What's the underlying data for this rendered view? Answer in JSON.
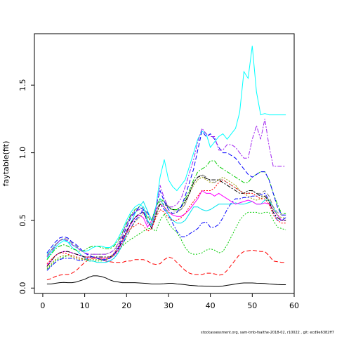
{
  "footer": "stockassessment.org, sam-tmb-fsaithe-2018-02, r10022 , git: ecd9e6382ff7",
  "chart_data": {
    "type": "line",
    "title": "",
    "xlabel": "",
    "ylabel": "faytable(fit)",
    "xlim": [
      -2,
      60
    ],
    "ylim": [
      -0.04,
      1.88
    ],
    "x_ticks": [
      0,
      10,
      20,
      30,
      40,
      50,
      60
    ],
    "y_ticks": [
      0.0,
      0.5,
      1.0,
      1.5
    ],
    "x_tick_labels": [
      "0",
      "10",
      "20",
      "30",
      "40",
      "50",
      "60"
    ],
    "y_tick_labels": [
      "0.0",
      "0.5",
      "1.0",
      "1.5"
    ],
    "grid": false,
    "legend": "none",
    "x": [
      1,
      2,
      3,
      4,
      5,
      6,
      7,
      8,
      9,
      10,
      11,
      12,
      13,
      14,
      15,
      16,
      17,
      18,
      19,
      20,
      21,
      22,
      23,
      24,
      25,
      26,
      27,
      28,
      29,
      30,
      31,
      32,
      33,
      34,
      35,
      36,
      37,
      38,
      39,
      40,
      41,
      42,
      43,
      44,
      45,
      46,
      47,
      48,
      49,
      50,
      51,
      52,
      53,
      54,
      55,
      56,
      57,
      58
    ],
    "series": [
      {
        "color": "#000000",
        "dash": "solid",
        "values": [
          0.03,
          0.03,
          0.035,
          0.04,
          0.042,
          0.04,
          0.04,
          0.045,
          0.055,
          0.065,
          0.08,
          0.09,
          0.09,
          0.085,
          0.075,
          0.06,
          0.05,
          0.045,
          0.04,
          0.04,
          0.04,
          0.04,
          0.038,
          0.036,
          0.034,
          0.03,
          0.03,
          0.03,
          0.032,
          0.035,
          0.035,
          0.03,
          0.028,
          0.025,
          0.02,
          0.018,
          0.016,
          0.015,
          0.014,
          0.013,
          0.012,
          0.012,
          0.015,
          0.02,
          0.025,
          0.03,
          0.035,
          0.038,
          0.038,
          0.038,
          0.036,
          0.035,
          0.034,
          0.03,
          0.028,
          0.026,
          0.025,
          0.025
        ]
      },
      {
        "color": "#ff0000",
        "dash": "6,3",
        "values": [
          0.06,
          0.07,
          0.085,
          0.095,
          0.1,
          0.1,
          0.11,
          0.13,
          0.16,
          0.19,
          0.21,
          0.22,
          0.22,
          0.21,
          0.2,
          0.195,
          0.19,
          0.19,
          0.19,
          0.2,
          0.2,
          0.21,
          0.21,
          0.21,
          0.2,
          0.18,
          0.175,
          0.18,
          0.21,
          0.23,
          0.22,
          0.19,
          0.16,
          0.13,
          0.11,
          0.1,
          0.1,
          0.1,
          0.11,
          0.11,
          0.105,
          0.095,
          0.1,
          0.13,
          0.17,
          0.21,
          0.25,
          0.27,
          0.275,
          0.28,
          0.275,
          0.27,
          0.27,
          0.24,
          0.2,
          0.195,
          0.19,
          0.19
        ]
      },
      {
        "color": "#00cc00",
        "dash": "2,2",
        "values": [
          0.14,
          0.17,
          0.2,
          0.22,
          0.23,
          0.24,
          0.24,
          0.23,
          0.22,
          0.21,
          0.2,
          0.2,
          0.2,
          0.2,
          0.21,
          0.22,
          0.25,
          0.28,
          0.31,
          0.34,
          0.36,
          0.38,
          0.4,
          0.42,
          0.44,
          0.44,
          0.42,
          0.5,
          0.55,
          0.48,
          0.44,
          0.41,
          0.36,
          0.3,
          0.26,
          0.25,
          0.25,
          0.26,
          0.28,
          0.29,
          0.28,
          0.26,
          0.27,
          0.32,
          0.38,
          0.44,
          0.5,
          0.54,
          0.56,
          0.56,
          0.56,
          0.55,
          0.56,
          0.56,
          0.5,
          0.45,
          0.44,
          0.43
        ]
      },
      {
        "color": "#0000ff",
        "dash": "6,2,2,2",
        "values": [
          0.13,
          0.16,
          0.19,
          0.21,
          0.22,
          0.22,
          0.22,
          0.21,
          0.2,
          0.21,
          0.22,
          0.23,
          0.22,
          0.21,
          0.2,
          0.2,
          0.22,
          0.26,
          0.32,
          0.38,
          0.44,
          0.5,
          0.53,
          0.58,
          0.56,
          0.5,
          0.58,
          0.62,
          0.58,
          0.54,
          0.48,
          0.42,
          0.38,
          0.38,
          0.4,
          0.42,
          0.44,
          0.48,
          0.49,
          0.45,
          0.45,
          0.47,
          0.52,
          0.58,
          0.63,
          0.66,
          0.66,
          0.67,
          0.67,
          0.68,
          0.68,
          0.69,
          0.7,
          0.65,
          0.56,
          0.5,
          0.5,
          0.52
        ]
      },
      {
        "color": "#00e5ee",
        "dash": "solid",
        "values": [
          0.25,
          0.28,
          0.32,
          0.35,
          0.36,
          0.34,
          0.3,
          0.28,
          0.25,
          0.22,
          0.2,
          0.2,
          0.19,
          0.19,
          0.19,
          0.2,
          0.22,
          0.26,
          0.32,
          0.4,
          0.48,
          0.55,
          0.6,
          0.64,
          0.57,
          0.5,
          0.6,
          0.66,
          0.6,
          0.54,
          0.5,
          0.48,
          0.48,
          0.5,
          0.55,
          0.6,
          0.6,
          0.58,
          0.57,
          0.58,
          0.6,
          0.62,
          0.62,
          0.62,
          0.62,
          0.63,
          0.62,
          0.62,
          0.63,
          0.64,
          0.62,
          0.62,
          0.65,
          0.65,
          0.6,
          0.54,
          0.5,
          0.5
        ]
      },
      {
        "color": "#ff00ff",
        "dash": "solid",
        "values": [
          0.17,
          0.2,
          0.24,
          0.26,
          0.27,
          0.27,
          0.26,
          0.25,
          0.24,
          0.23,
          0.23,
          0.23,
          0.22,
          0.22,
          0.22,
          0.22,
          0.24,
          0.28,
          0.34,
          0.41,
          0.47,
          0.52,
          0.54,
          0.52,
          0.45,
          0.5,
          0.58,
          0.62,
          0.6,
          0.56,
          0.54,
          0.53,
          0.53,
          0.55,
          0.58,
          0.62,
          0.66,
          0.72,
          0.7,
          0.7,
          0.68,
          0.7,
          0.68,
          0.66,
          0.64,
          0.62,
          0.63,
          0.64,
          0.65,
          0.64,
          0.62,
          0.62,
          0.63,
          0.62,
          0.58,
          0.54,
          0.5,
          0.5
        ]
      },
      {
        "color": "#999900",
        "dash": "2,2",
        "values": [
          0.15,
          0.18,
          0.21,
          0.23,
          0.24,
          0.24,
          0.23,
          0.22,
          0.21,
          0.21,
          0.21,
          0.21,
          0.21,
          0.21,
          0.21,
          0.22,
          0.24,
          0.27,
          0.32,
          0.38,
          0.44,
          0.49,
          0.52,
          0.55,
          0.5,
          0.45,
          0.55,
          0.62,
          0.6,
          0.56,
          0.55,
          0.56,
          0.58,
          0.62,
          0.7,
          0.76,
          0.8,
          0.82,
          0.8,
          0.78,
          0.78,
          0.8,
          0.82,
          0.8,
          0.78,
          0.76,
          0.72,
          0.7,
          0.68,
          0.66,
          0.65,
          0.66,
          0.68,
          0.65,
          0.58,
          0.54,
          0.52,
          0.52
        ]
      },
      {
        "color": "#808080",
        "dash": "6,3",
        "values": [
          0.24,
          0.28,
          0.32,
          0.35,
          0.37,
          0.36,
          0.33,
          0.31,
          0.28,
          0.26,
          0.25,
          0.25,
          0.25,
          0.25,
          0.25,
          0.26,
          0.28,
          0.32,
          0.38,
          0.45,
          0.52,
          0.56,
          0.58,
          0.6,
          0.54,
          0.47,
          0.56,
          0.64,
          0.64,
          0.6,
          0.57,
          0.57,
          0.58,
          0.62,
          0.7,
          0.78,
          0.82,
          0.84,
          0.82,
          0.79,
          0.78,
          0.8,
          0.8,
          0.78,
          0.76,
          0.74,
          0.72,
          0.7,
          0.7,
          0.72,
          0.7,
          0.7,
          0.72,
          0.68,
          0.6,
          0.56,
          0.54,
          0.54
        ]
      },
      {
        "color": "#000000",
        "dash": "6,2,2,2",
        "values": [
          0.16,
          0.2,
          0.24,
          0.26,
          0.27,
          0.27,
          0.26,
          0.25,
          0.24,
          0.23,
          0.23,
          0.23,
          0.23,
          0.23,
          0.23,
          0.23,
          0.25,
          0.29,
          0.35,
          0.42,
          0.48,
          0.52,
          0.55,
          0.56,
          0.5,
          0.44,
          0.54,
          0.62,
          0.62,
          0.6,
          0.58,
          0.58,
          0.6,
          0.64,
          0.7,
          0.78,
          0.82,
          0.83,
          0.81,
          0.8,
          0.8,
          0.8,
          0.78,
          0.76,
          0.74,
          0.72,
          0.7,
          0.7,
          0.72,
          0.72,
          0.7,
          0.68,
          0.68,
          0.64,
          0.56,
          0.52,
          0.5,
          0.5
        ]
      },
      {
        "color": "#ff0000",
        "dash": "2,2",
        "values": [
          0.18,
          0.21,
          0.24,
          0.26,
          0.26,
          0.25,
          0.24,
          0.23,
          0.22,
          0.22,
          0.23,
          0.23,
          0.22,
          0.22,
          0.22,
          0.23,
          0.26,
          0.31,
          0.36,
          0.41,
          0.44,
          0.46,
          0.48,
          0.46,
          0.42,
          0.44,
          0.52,
          0.58,
          0.56,
          0.52,
          0.5,
          0.5,
          0.52,
          0.55,
          0.6,
          0.64,
          0.68,
          0.72,
          0.72,
          0.72,
          0.74,
          0.78,
          0.8,
          0.78,
          0.76,
          0.74,
          0.72,
          0.7,
          0.7,
          0.7,
          0.68,
          0.66,
          0.66,
          0.62,
          0.54,
          0.5,
          0.48,
          0.48
        ]
      },
      {
        "color": "#00cc00",
        "dash": "6,2,2,2",
        "values": [
          0.21,
          0.25,
          0.29,
          0.31,
          0.32,
          0.31,
          0.29,
          0.28,
          0.27,
          0.28,
          0.3,
          0.31,
          0.31,
          0.3,
          0.29,
          0.29,
          0.31,
          0.35,
          0.41,
          0.48,
          0.54,
          0.58,
          0.6,
          0.58,
          0.52,
          0.5,
          0.6,
          0.66,
          0.64,
          0.6,
          0.58,
          0.58,
          0.6,
          0.66,
          0.72,
          0.8,
          0.86,
          0.88,
          0.9,
          0.94,
          0.94,
          0.9,
          0.88,
          0.86,
          0.84,
          0.82,
          0.8,
          0.78,
          0.78,
          0.82,
          0.84,
          0.86,
          0.86,
          0.8,
          0.7,
          0.62,
          0.55,
          0.55
        ]
      },
      {
        "color": "#0000ff",
        "dash": "6,3",
        "values": [
          0.26,
          0.3,
          0.34,
          0.37,
          0.38,
          0.37,
          0.34,
          0.32,
          0.29,
          0.26,
          0.24,
          0.23,
          0.22,
          0.21,
          0.21,
          0.22,
          0.25,
          0.3,
          0.37,
          0.45,
          0.52,
          0.56,
          0.6,
          0.58,
          0.5,
          0.46,
          0.6,
          0.72,
          0.64,
          0.58,
          0.55,
          0.56,
          0.6,
          0.68,
          0.78,
          0.88,
          1.02,
          1.16,
          1.12,
          1.14,
          1.1,
          1.04,
          1.0,
          1.0,
          0.98,
          0.96,
          0.92,
          0.88,
          0.84,
          0.82,
          0.84,
          0.86,
          0.86,
          0.8,
          0.7,
          0.6,
          0.54,
          0.54
        ]
      },
      {
        "color": "#00ffff",
        "dash": "solid",
        "values": [
          0.22,
          0.26,
          0.3,
          0.33,
          0.35,
          0.34,
          0.32,
          0.3,
          0.28,
          0.27,
          0.28,
          0.3,
          0.31,
          0.31,
          0.3,
          0.3,
          0.32,
          0.37,
          0.43,
          0.5,
          0.56,
          0.6,
          0.62,
          0.6,
          0.5,
          0.46,
          0.6,
          0.82,
          0.95,
          0.8,
          0.75,
          0.72,
          0.76,
          0.8,
          0.9,
          1.0,
          1.1,
          1.16,
          1.14,
          1.04,
          1.08,
          1.12,
          1.14,
          1.1,
          1.14,
          1.18,
          1.3,
          1.6,
          1.55,
          1.79,
          1.45,
          1.28,
          1.29,
          1.28,
          1.28,
          1.28,
          1.28,
          1.28
        ]
      },
      {
        "color": "#a020f0",
        "dash": "6,2,2,2",
        "values": [
          0.23,
          0.27,
          0.31,
          0.35,
          0.36,
          0.35,
          0.32,
          0.3,
          0.28,
          0.26,
          0.25,
          0.25,
          0.25,
          0.25,
          0.25,
          0.26,
          0.28,
          0.33,
          0.4,
          0.47,
          0.53,
          0.57,
          0.58,
          0.56,
          0.48,
          0.45,
          0.58,
          0.76,
          0.66,
          0.6,
          0.6,
          0.62,
          0.66,
          0.75,
          0.85,
          0.95,
          1.08,
          1.18,
          1.14,
          1.12,
          1.12,
          1.02,
          1.02,
          1.06,
          1.06,
          1.04,
          1.0,
          0.96,
          0.96,
          1.1,
          1.2,
          1.1,
          1.25,
          1.05,
          0.9,
          0.9,
          0.9,
          0.9
        ]
      }
    ]
  }
}
